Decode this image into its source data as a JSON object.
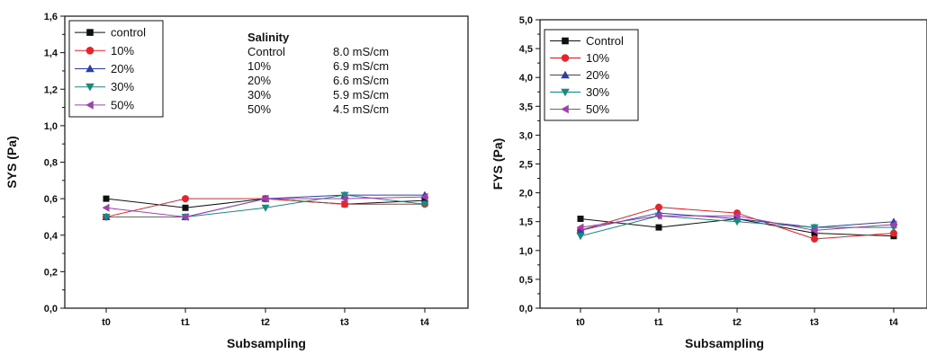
{
  "chart_data": [
    {
      "type": "line",
      "ylabel": "SYS (Pa)",
      "xlabel": "Subsampling",
      "categories": [
        "t0",
        "t1",
        "t2",
        "t3",
        "t4"
      ],
      "ylim": [
        0,
        1.6
      ],
      "yticks": [
        "0,0",
        "0,2",
        "0,4",
        "0,6",
        "0,8",
        "1,0",
        "1,2",
        "1,4",
        "1,6"
      ],
      "ytick_values": [
        0,
        0.2,
        0.4,
        0.6,
        0.8,
        1.0,
        1.2,
        1.4,
        1.6
      ],
      "legend_position": "top-left",
      "series": [
        {
          "name": "control",
          "color": "#111111",
          "marker": "square",
          "values": [
            0.6,
            0.55,
            0.6,
            0.57,
            0.59
          ]
        },
        {
          "name": "10%",
          "color": "#e8232a",
          "marker": "circle",
          "values": [
            0.5,
            0.6,
            0.6,
            0.57,
            0.57
          ]
        },
        {
          "name": "20%",
          "color": "#2d3fa6",
          "marker": "triangle-up",
          "values": [
            0.5,
            0.5,
            0.6,
            0.62,
            0.62
          ]
        },
        {
          "name": "30%",
          "color": "#1a8a80",
          "marker": "triangle-down",
          "values": [
            0.5,
            0.5,
            0.55,
            0.62,
            0.57
          ]
        },
        {
          "name": "50%",
          "color": "#a040b0",
          "marker": "triangle-left",
          "values": [
            0.55,
            0.5,
            0.6,
            0.6,
            0.61
          ]
        }
      ],
      "annotation": {
        "heading": "Salinity",
        "rows": [
          {
            "label": "Control",
            "value": "8.0 mS/cm"
          },
          {
            "label": "10%",
            "value": "6.9 mS/cm"
          },
          {
            "label": "20%",
            "value": "6.6 mS/cm"
          },
          {
            "label": "30%",
            "value": "5.9 mS/cm"
          },
          {
            "label": "50%",
            "value": "4.5 mS/cm"
          }
        ]
      }
    },
    {
      "type": "line",
      "ylabel": "FYS (Pa)",
      "xlabel": "Subsampling",
      "categories": [
        "t0",
        "t1",
        "t2",
        "t3",
        "t4"
      ],
      "ylim": [
        0,
        5
      ],
      "yticks": [
        "0,0",
        "0,5",
        "1,0",
        "1,5",
        "2,0",
        "2,5",
        "3,0",
        "3,5",
        "4,0",
        "4,5",
        "5,0"
      ],
      "ytick_values": [
        0,
        0.5,
        1.0,
        1.5,
        2.0,
        2.5,
        3.0,
        3.5,
        4.0,
        4.5,
        5.0
      ],
      "legend_position": "top-left",
      "series": [
        {
          "name": "Control",
          "color": "#111111",
          "marker": "square",
          "values": [
            1.55,
            1.4,
            1.55,
            1.3,
            1.25
          ]
        },
        {
          "name": "10%",
          "color": "#e8232a",
          "marker": "circle",
          "values": [
            1.35,
            1.75,
            1.65,
            1.2,
            1.3
          ]
        },
        {
          "name": "20%",
          "color": "#2d3fa6",
          "marker": "triangle-up",
          "values": [
            1.35,
            1.65,
            1.55,
            1.4,
            1.5
          ]
        },
        {
          "name": "30%",
          "color": "#1a8a80",
          "marker": "triangle-down",
          "values": [
            1.25,
            1.6,
            1.5,
            1.4,
            1.4
          ]
        },
        {
          "name": "50%",
          "color": "#a040b0",
          "marker": "triangle-left",
          "values": [
            1.4,
            1.6,
            1.6,
            1.35,
            1.45
          ]
        }
      ]
    }
  ]
}
